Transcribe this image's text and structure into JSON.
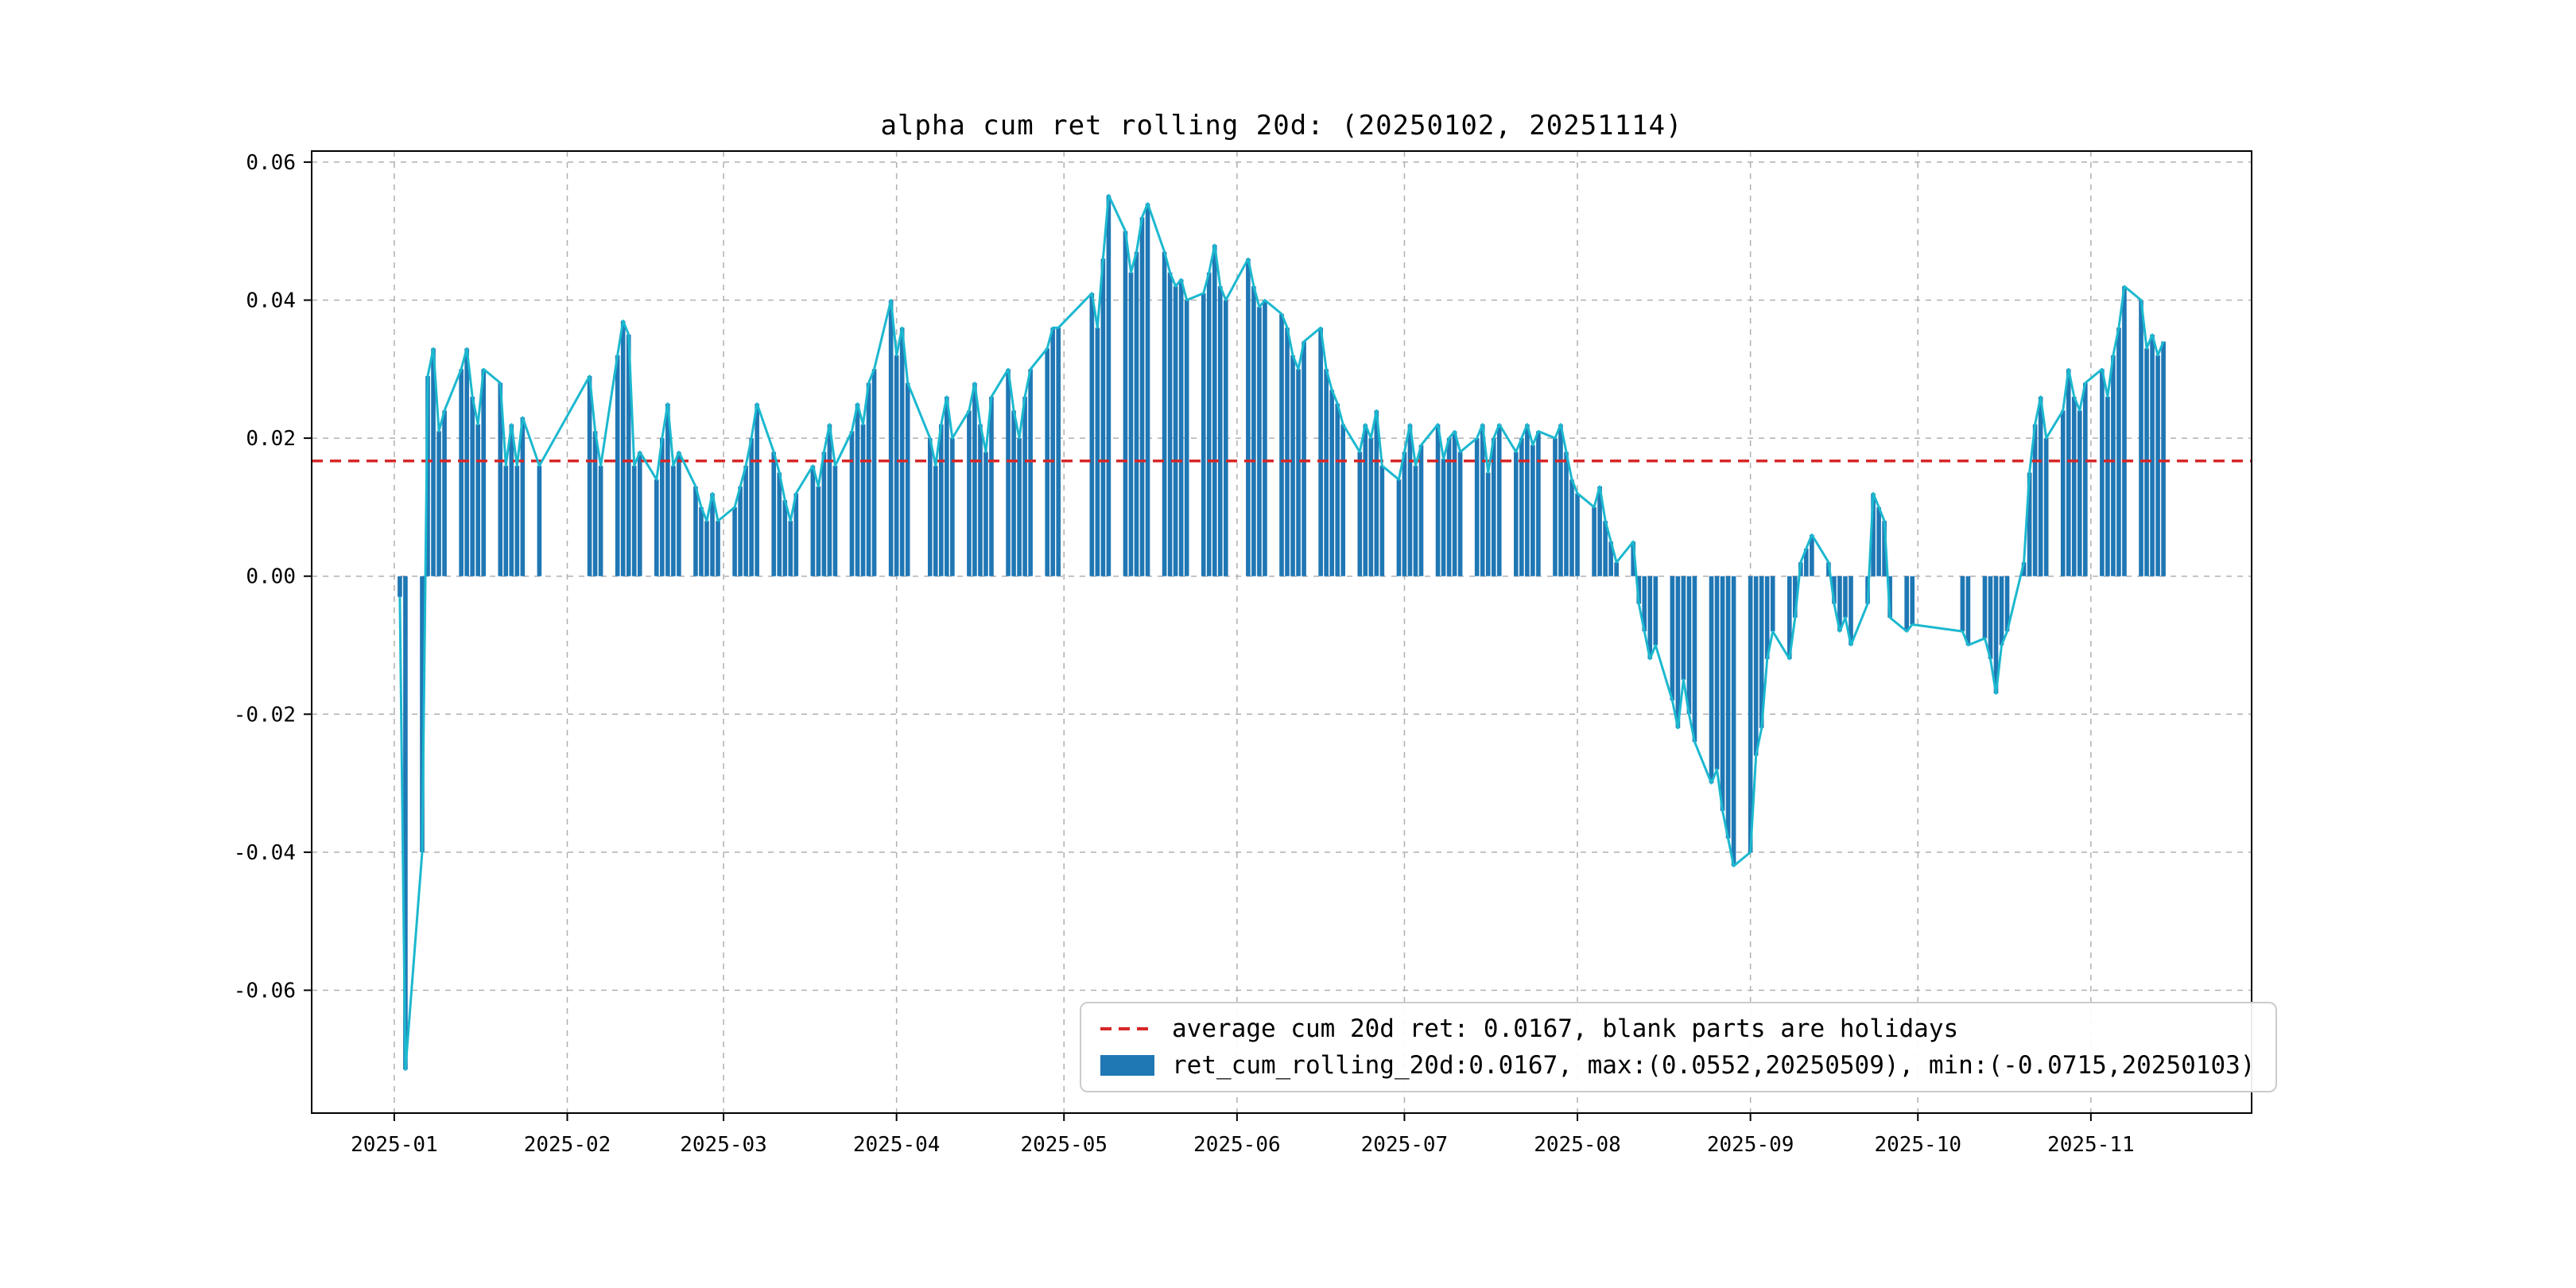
{
  "figure": {
    "title": "alpha cum ret rolling 20d: (20250102, 20251114)"
  },
  "legend": {
    "avg_label": "average cum 20d ret: 0.0167, blank parts are holidays",
    "series_label": "ret_cum_rolling_20d:0.0167, max:(0.0552,20250509), min:(-0.0715,20250103)"
  },
  "colors": {
    "bar": "#1f77b4",
    "line": "#1cb8cf",
    "avg": "#d62728",
    "grid": "#b0b0b0",
    "spine": "#000000",
    "tick_text": "#000000"
  },
  "axes": {
    "average": 0.0167,
    "y_ticks": [
      {
        "v": 0.06,
        "label": "0.06"
      },
      {
        "v": 0.04,
        "label": "0.04"
      },
      {
        "v": 0.02,
        "label": "0.02"
      },
      {
        "v": 0.0,
        "label": "0.00"
      },
      {
        "v": -0.02,
        "label": "-0.02"
      },
      {
        "v": -0.04,
        "label": "-0.04"
      },
      {
        "v": -0.06,
        "label": "-0.06"
      }
    ],
    "x_ticks": [
      {
        "doy": 1,
        "label": "2025-01"
      },
      {
        "doy": 32,
        "label": "2025-02"
      },
      {
        "doy": 60,
        "label": "2025-03"
      },
      {
        "doy": 91,
        "label": "2025-04"
      },
      {
        "doy": 121,
        "label": "2025-05"
      },
      {
        "doy": 152,
        "label": "2025-06"
      },
      {
        "doy": 182,
        "label": "2025-07"
      },
      {
        "doy": 213,
        "label": "2025-08"
      },
      {
        "doy": 244,
        "label": "2025-09"
      },
      {
        "doy": 274,
        "label": "2025-10"
      },
      {
        "doy": 305,
        "label": "2025-11"
      }
    ]
  },
  "chart_data": {
    "type": "bar",
    "title": "alpha cum ret rolling 20d: (20250102, 20251114)",
    "xlabel": "",
    "ylabel": "",
    "ylim": [
      -0.0778,
      0.0616
    ],
    "series_name": "ret_cum_rolling_20d",
    "average": 0.0167,
    "max": {
      "value": 0.0552,
      "date": "20250509"
    },
    "min": {
      "value": -0.0715,
      "date": "20250103"
    },
    "x": [
      "2025-01-02",
      "2025-01-03",
      "2025-01-06",
      "2025-01-07",
      "2025-01-08",
      "2025-01-09",
      "2025-01-10",
      "2025-01-13",
      "2025-01-14",
      "2025-01-15",
      "2025-01-16",
      "2025-01-17",
      "2025-01-20",
      "2025-01-21",
      "2025-01-22",
      "2025-01-23",
      "2025-01-24",
      "2025-01-27",
      "2025-02-05",
      "2025-02-06",
      "2025-02-07",
      "2025-02-10",
      "2025-02-11",
      "2025-02-12",
      "2025-02-13",
      "2025-02-14",
      "2025-02-17",
      "2025-02-18",
      "2025-02-19",
      "2025-02-20",
      "2025-02-21",
      "2025-02-24",
      "2025-02-25",
      "2025-02-26",
      "2025-02-27",
      "2025-02-28",
      "2025-03-03",
      "2025-03-04",
      "2025-03-05",
      "2025-03-06",
      "2025-03-07",
      "2025-03-10",
      "2025-03-11",
      "2025-03-12",
      "2025-03-13",
      "2025-03-14",
      "2025-03-17",
      "2025-03-18",
      "2025-03-19",
      "2025-03-20",
      "2025-03-21",
      "2025-03-24",
      "2025-03-25",
      "2025-03-26",
      "2025-03-27",
      "2025-03-28",
      "2025-03-31",
      "2025-04-01",
      "2025-04-02",
      "2025-04-03",
      "2025-04-07",
      "2025-04-08",
      "2025-04-09",
      "2025-04-10",
      "2025-04-11",
      "2025-04-14",
      "2025-04-15",
      "2025-04-16",
      "2025-04-17",
      "2025-04-18",
      "2025-04-21",
      "2025-04-22",
      "2025-04-23",
      "2025-04-24",
      "2025-04-25",
      "2025-04-28",
      "2025-04-29",
      "2025-04-30",
      "2025-05-06",
      "2025-05-07",
      "2025-05-08",
      "2025-05-09",
      "2025-05-12",
      "2025-05-13",
      "2025-05-14",
      "2025-05-15",
      "2025-05-16",
      "2025-05-19",
      "2025-05-20",
      "2025-05-21",
      "2025-05-22",
      "2025-05-23",
      "2025-05-26",
      "2025-05-27",
      "2025-05-28",
      "2025-05-29",
      "2025-05-30",
      "2025-06-03",
      "2025-06-04",
      "2025-06-05",
      "2025-06-06",
      "2025-06-09",
      "2025-06-10",
      "2025-06-11",
      "2025-06-12",
      "2025-06-13",
      "2025-06-16",
      "2025-06-17",
      "2025-06-18",
      "2025-06-19",
      "2025-06-20",
      "2025-06-23",
      "2025-06-24",
      "2025-06-25",
      "2025-06-26",
      "2025-06-27",
      "2025-06-30",
      "2025-07-01",
      "2025-07-02",
      "2025-07-03",
      "2025-07-04",
      "2025-07-07",
      "2025-07-08",
      "2025-07-09",
      "2025-07-10",
      "2025-07-11",
      "2025-07-14",
      "2025-07-15",
      "2025-07-16",
      "2025-07-17",
      "2025-07-18",
      "2025-07-21",
      "2025-07-22",
      "2025-07-23",
      "2025-07-24",
      "2025-07-25",
      "2025-07-28",
      "2025-07-29",
      "2025-07-30",
      "2025-07-31",
      "2025-08-01",
      "2025-08-04",
      "2025-08-05",
      "2025-08-06",
      "2025-08-07",
      "2025-08-08",
      "2025-08-11",
      "2025-08-12",
      "2025-08-13",
      "2025-08-14",
      "2025-08-15",
      "2025-08-18",
      "2025-08-19",
      "2025-08-20",
      "2025-08-21",
      "2025-08-22",
      "2025-08-25",
      "2025-08-26",
      "2025-08-27",
      "2025-08-28",
      "2025-08-29",
      "2025-09-01",
      "2025-09-02",
      "2025-09-03",
      "2025-09-04",
      "2025-09-05",
      "2025-09-08",
      "2025-09-09",
      "2025-09-10",
      "2025-09-11",
      "2025-09-12",
      "2025-09-15",
      "2025-09-16",
      "2025-09-17",
      "2025-09-18",
      "2025-09-19",
      "2025-09-22",
      "2025-09-23",
      "2025-09-24",
      "2025-09-25",
      "2025-09-26",
      "2025-09-29",
      "2025-09-30",
      "2025-10-09",
      "2025-10-10",
      "2025-10-13",
      "2025-10-14",
      "2025-10-15",
      "2025-10-16",
      "2025-10-17",
      "2025-10-20",
      "2025-10-21",
      "2025-10-22",
      "2025-10-23",
      "2025-10-24",
      "2025-10-27",
      "2025-10-28",
      "2025-10-29",
      "2025-10-30",
      "2025-10-31",
      "2025-11-03",
      "2025-11-04",
      "2025-11-05",
      "2025-11-06",
      "2025-11-07",
      "2025-11-10",
      "2025-11-11",
      "2025-11-12",
      "2025-11-13",
      "2025-11-14"
    ],
    "values": [
      -0.003,
      -0.0715,
      -0.04,
      0.029,
      0.033,
      0.021,
      0.024,
      0.03,
      0.033,
      0.026,
      0.022,
      0.03,
      0.028,
      0.016,
      0.022,
      0.016,
      0.023,
      0.016,
      0.029,
      0.021,
      0.016,
      0.032,
      0.037,
      0.035,
      0.016,
      0.018,
      0.014,
      0.02,
      0.025,
      0.016,
      0.018,
      0.013,
      0.01,
      0.008,
      0.012,
      0.008,
      0.01,
      0.013,
      0.016,
      0.02,
      0.025,
      0.018,
      0.015,
      0.011,
      0.008,
      0.012,
      0.016,
      0.013,
      0.018,
      0.022,
      0.016,
      0.021,
      0.025,
      0.022,
      0.028,
      0.03,
      0.04,
      0.032,
      0.036,
      0.028,
      0.02,
      0.016,
      0.022,
      0.026,
      0.02,
      0.024,
      0.028,
      0.022,
      0.018,
      0.026,
      0.03,
      0.024,
      0.02,
      0.026,
      0.03,
      0.033,
      0.036,
      0.036,
      0.041,
      0.036,
      0.046,
      0.0552,
      0.05,
      0.044,
      0.047,
      0.052,
      0.054,
      0.047,
      0.044,
      0.042,
      0.043,
      0.04,
      0.041,
      0.044,
      0.048,
      0.042,
      0.04,
      0.046,
      0.042,
      0.039,
      0.04,
      0.038,
      0.036,
      0.032,
      0.03,
      0.034,
      0.036,
      0.03,
      0.027,
      0.025,
      0.022,
      0.018,
      0.022,
      0.02,
      0.024,
      0.016,
      0.014,
      0.018,
      0.022,
      0.016,
      0.019,
      0.022,
      0.017,
      0.02,
      0.021,
      0.018,
      0.02,
      0.022,
      0.015,
      0.02,
      0.022,
      0.018,
      0.02,
      0.022,
      0.019,
      0.021,
      0.02,
      0.022,
      0.018,
      0.014,
      0.012,
      0.01,
      0.013,
      0.008,
      0.005,
      0.002,
      0.005,
      -0.004,
      -0.008,
      -0.012,
      -0.01,
      -0.018,
      -0.022,
      -0.015,
      -0.02,
      -0.024,
      -0.03,
      -0.028,
      -0.034,
      -0.038,
      -0.042,
      -0.04,
      -0.026,
      -0.022,
      -0.012,
      -0.008,
      -0.012,
      -0.006,
      0.002,
      0.004,
      0.006,
      0.002,
      -0.004,
      -0.008,
      -0.006,
      -0.01,
      -0.004,
      0.012,
      0.01,
      0.008,
      -0.006,
      -0.008,
      -0.007,
      -0.008,
      -0.01,
      -0.009,
      -0.012,
      -0.017,
      -0.01,
      -0.008,
      0.002,
      0.015,
      0.022,
      0.026,
      0.02,
      0.024,
      0.03,
      0.026,
      0.024,
      0.028,
      0.03,
      0.026,
      0.032,
      0.036,
      0.042,
      0.04,
      0.033,
      0.035,
      0.032,
      0.034
    ]
  }
}
